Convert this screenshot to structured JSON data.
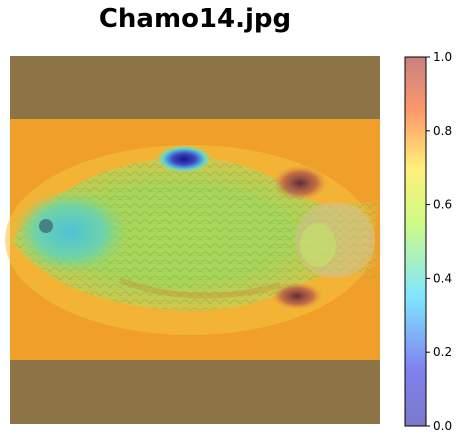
{
  "figure": {
    "title": "Chamo14.jpg",
    "image_subject": "fish photograph with saliency heatmap overlay",
    "colorbar": {
      "colormap": "jet",
      "alpha": 0.5,
      "range": [
        0.0,
        1.0
      ],
      "ticks": [
        "0.0",
        "0.2",
        "0.4",
        "0.6",
        "0.8",
        "1.0"
      ]
    },
    "colors": {
      "background_band": "#8c7447",
      "heat_base": "#f3a227",
      "fish_body": "#9bd45a",
      "hot_region": "#2a1aa0"
    }
  }
}
